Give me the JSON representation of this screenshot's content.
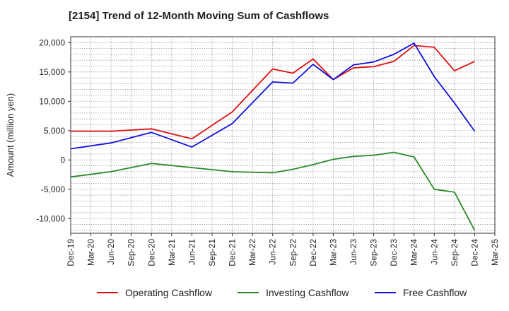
{
  "chart_data": {
    "type": "line",
    "title": "[2154]  Trend of 12-Month Moving Sum of Cashflows",
    "ylabel": "Amount (million yen)",
    "xlabel": "",
    "ylim": [
      -12500,
      21000
    ],
    "y_ticks": [
      20000,
      15000,
      10000,
      5000,
      0,
      -5000,
      -10000
    ],
    "y_tick_labels": [
      "20,000",
      "15,000",
      "10,000",
      "5,000",
      "0",
      "-5,000",
      "-10,000"
    ],
    "categories": [
      "Dec-19",
      "Mar-20",
      "Jun-20",
      "Sep-20",
      "Dec-20",
      "Mar-21",
      "Jun-21",
      "Sep-21",
      "Dec-21",
      "Mar-22",
      "Jun-22",
      "Sep-22",
      "Dec-22",
      "Mar-23",
      "Jun-23",
      "Sep-23",
      "Dec-23",
      "Mar-24",
      "Jun-24",
      "Sep-24",
      "Dec-24",
      "Mar-25"
    ],
    "grid": true,
    "legend_position": "bottom",
    "series": [
      {
        "name": "Operating Cashflow",
        "color": "#dd1111",
        "values": [
          4900,
          null,
          4900,
          null,
          5300,
          null,
          3600,
          null,
          8200,
          null,
          15500,
          14800,
          17200,
          13700,
          15700,
          15900,
          16800,
          19500,
          19200,
          15200,
          16800,
          null
        ]
      },
      {
        "name": "Investing Cashflow",
        "color": "#2a8a2a",
        "values": [
          -2900,
          null,
          -2000,
          null,
          -600,
          null,
          -1300,
          null,
          -2000,
          null,
          -2200,
          -1600,
          -800,
          100,
          600,
          800,
          1300,
          500,
          -5000,
          -5500,
          -12000,
          null
        ]
      },
      {
        "name": "Free Cashflow",
        "color": "#1111dd",
        "values": [
          1900,
          null,
          2900,
          null,
          4700,
          null,
          2200,
          null,
          6200,
          null,
          13300,
          13100,
          16300,
          13700,
          16200,
          16700,
          18000,
          19900,
          14200,
          9700,
          4900,
          null
        ]
      }
    ]
  }
}
